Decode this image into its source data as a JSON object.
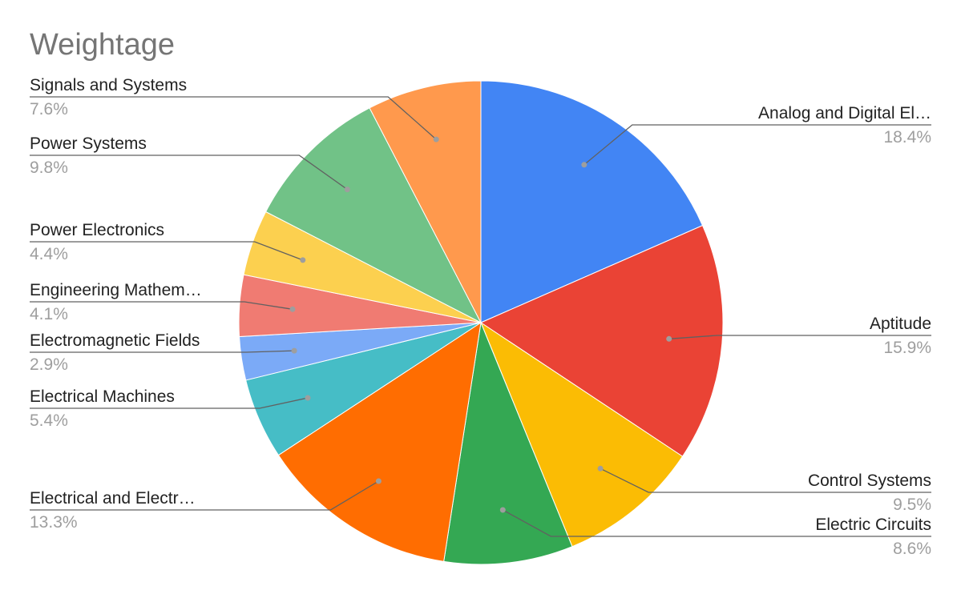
{
  "chart_data": {
    "type": "pie",
    "title": "Weightage",
    "start_angle_deg": 0,
    "direction": "clockwise",
    "slices": [
      {
        "label": "Analog and Digital El…",
        "pct_text": "18.4%",
        "value": 18.4,
        "color": "#4285F4"
      },
      {
        "label": "Aptitude",
        "pct_text": "15.9%",
        "value": 15.9,
        "color": "#EA4335"
      },
      {
        "label": "Control Systems",
        "pct_text": "9.5%",
        "value": 9.5,
        "color": "#FBBC04"
      },
      {
        "label": "Electric Circuits",
        "pct_text": "8.6%",
        "value": 8.6,
        "color": "#34A853"
      },
      {
        "label": "Electrical and Electr…",
        "pct_text": "13.3%",
        "value": 13.3,
        "color": "#FF6D01"
      },
      {
        "label": "Electrical Machines",
        "pct_text": "5.4%",
        "value": 5.4,
        "color": "#46BDC6"
      },
      {
        "label": "Electromagnetic Fields",
        "pct_text": "2.9%",
        "value": 2.9,
        "color": "#7BAAF7"
      },
      {
        "label": "Engineering Mathem…",
        "pct_text": "4.1%",
        "value": 4.1,
        "color": "#F07B72"
      },
      {
        "label": "Power Electronics",
        "pct_text": "4.4%",
        "value": 4.4,
        "color": "#FCD04F"
      },
      {
        "label": "Power Systems",
        "pct_text": "9.8%",
        "value": 9.8,
        "color": "#71C287"
      },
      {
        "label": "Signals and Systems",
        "pct_text": "7.6%",
        "value": 7.6,
        "color": "#FF994D"
      }
    ]
  }
}
